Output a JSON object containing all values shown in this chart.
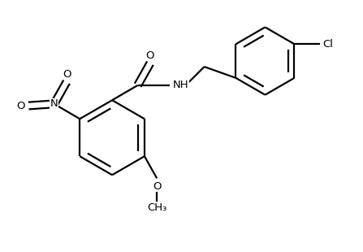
{
  "background_color": "#ffffff",
  "line_color": "#000000",
  "line_width": 1.6,
  "font_size": 9.5,
  "fig_width": 4.47,
  "fig_height": 3.1,
  "dpi": 100,
  "xlim": [
    0,
    10
  ],
  "ylim": [
    0,
    6.95
  ]
}
